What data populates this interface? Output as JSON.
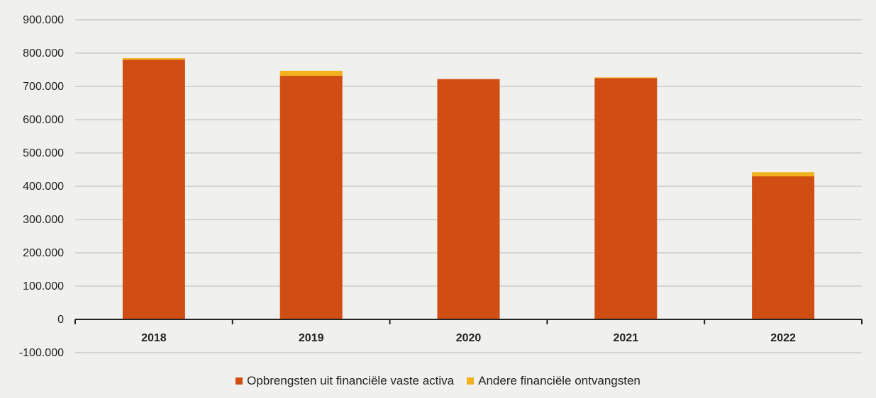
{
  "chart_data": {
    "type": "bar",
    "stacked": true,
    "categories": [
      "2018",
      "2019",
      "2020",
      "2021",
      "2022"
    ],
    "series": [
      {
        "name": "Opbrengsten uit financiële vaste activa",
        "color": "#d04e14",
        "values": [
          780000,
          732000,
          722000,
          725000,
          430000
        ]
      },
      {
        "name": "Andere financiële ontvangsten",
        "color": "#f2b21c",
        "values": [
          5000,
          15000,
          0,
          2000,
          12000
        ]
      }
    ],
    "ylim": [
      -100000,
      900000
    ],
    "yticks": [
      -100000,
      0,
      100000,
      200000,
      300000,
      400000,
      500000,
      600000,
      700000,
      800000,
      900000
    ],
    "ytick_labels": [
      "-100.000",
      "0",
      "100.000",
      "200.000",
      "300.000",
      "400.000",
      "500.000",
      "600.000",
      "700.000",
      "800.000",
      "900.000"
    ],
    "grid": true,
    "legend_position": "bottom"
  }
}
